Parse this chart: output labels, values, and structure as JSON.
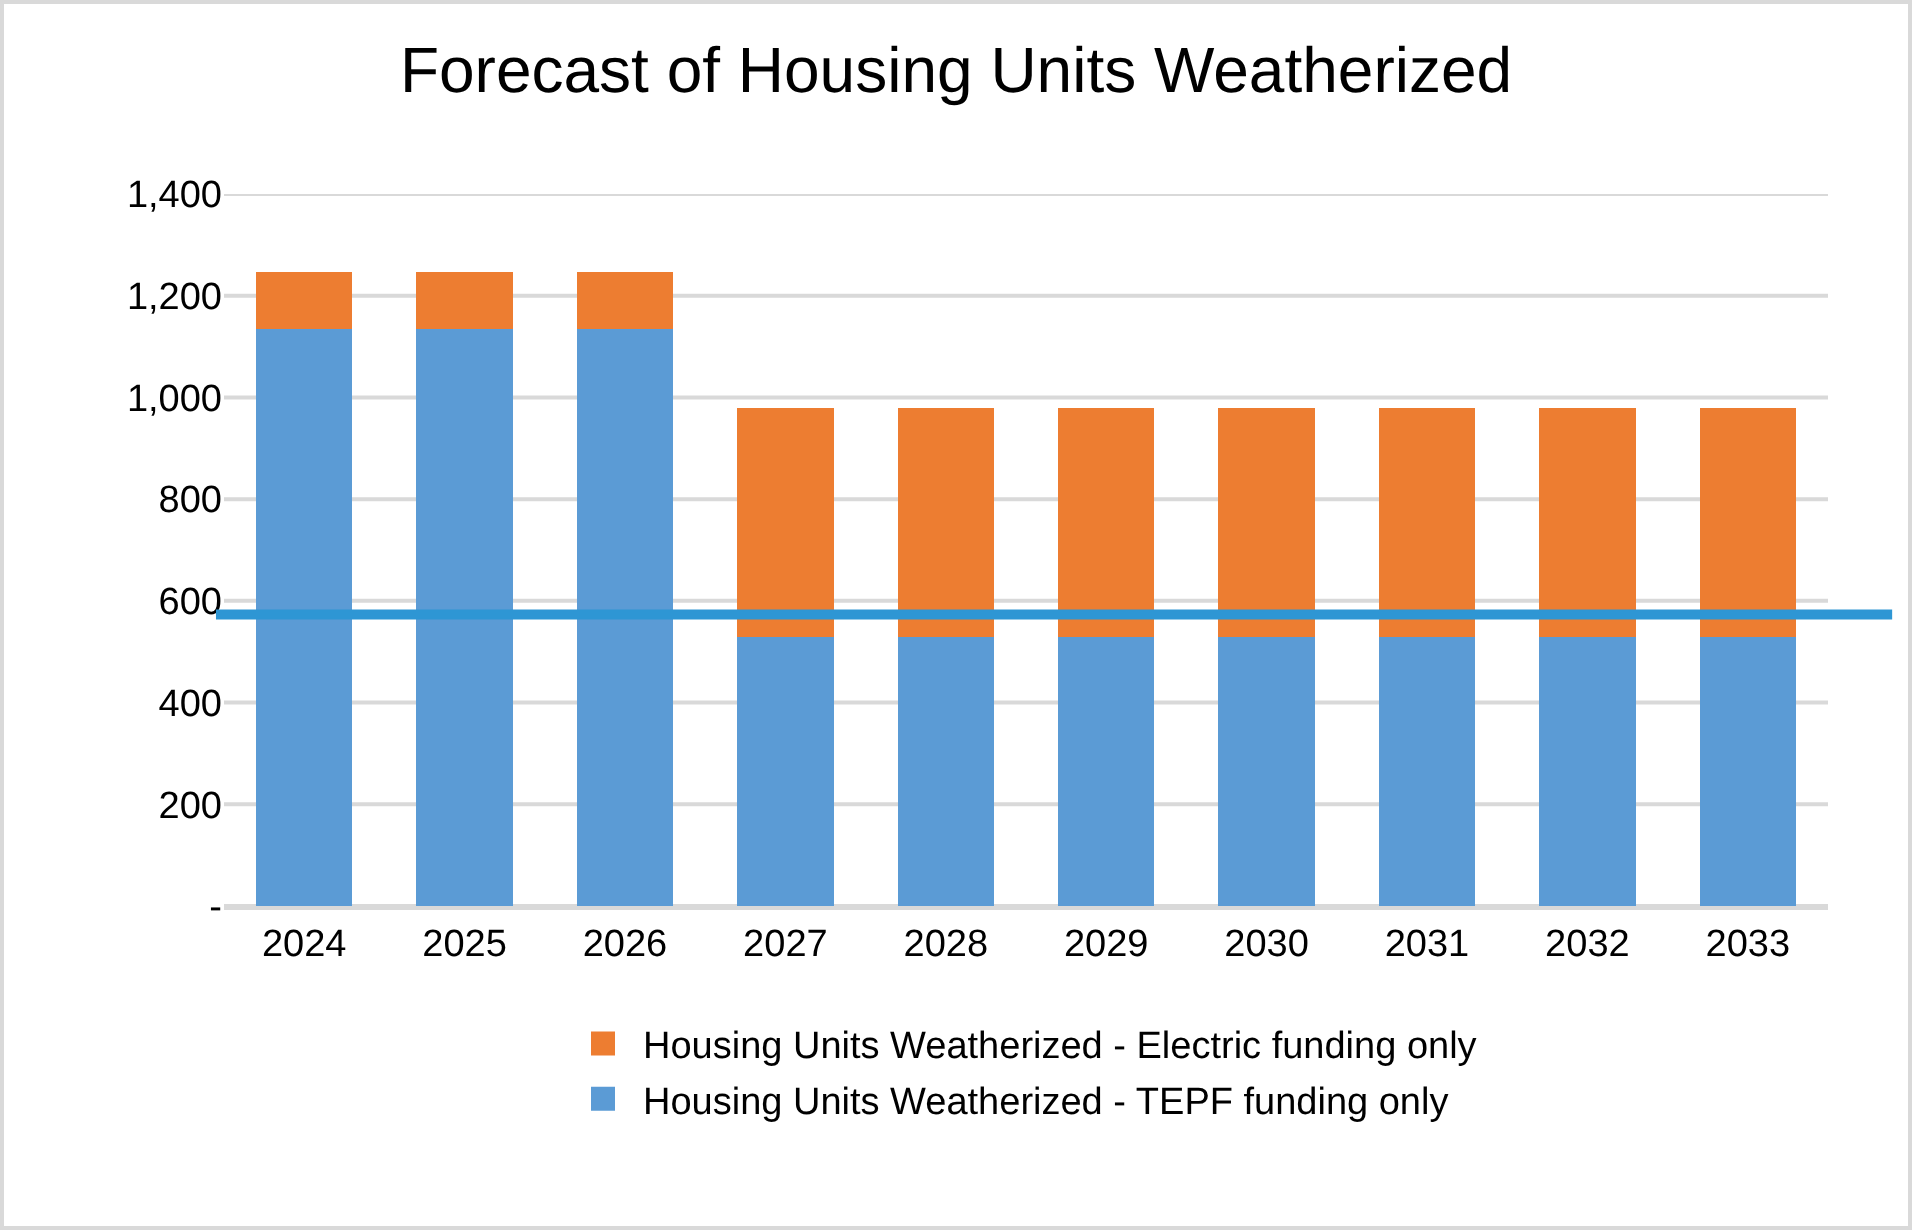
{
  "chart_data": {
    "type": "bar",
    "title": "Forecast of Housing Units Weatherized",
    "categories": [
      "2024",
      "2025",
      "2026",
      "2027",
      "2028",
      "2029",
      "2030",
      "2031",
      "2032",
      "2033"
    ],
    "stacked": true,
    "series": [
      {
        "name": "Housing Units Weatherized - TEPF funding only",
        "color": "#5b9bd5",
        "values": [
          1135,
          1135,
          1135,
          528,
          528,
          528,
          528,
          528,
          528,
          528
        ]
      },
      {
        "name": "Housing Units Weatherized - Electric funding only",
        "color": "#ed7d31",
        "values": [
          112,
          112,
          112,
          451,
          451,
          451,
          451,
          451,
          451,
          451
        ]
      }
    ],
    "ylim": [
      0,
      1400
    ],
    "yticks": [
      {
        "value": 0,
        "label": "-"
      },
      {
        "value": 200,
        "label": "200"
      },
      {
        "value": 400,
        "label": "400"
      },
      {
        "value": 600,
        "label": "600"
      },
      {
        "value": 800,
        "label": "800"
      },
      {
        "value": 1000,
        "label": "1,000"
      },
      {
        "value": 1200,
        "label": "1,200"
      },
      {
        "value": 1400,
        "label": "1,400"
      }
    ],
    "ref_lines": [
      {
        "axis": "y",
        "value": 573,
        "color": "#2e96d4"
      }
    ],
    "grid": "y",
    "legend": "bottom"
  }
}
